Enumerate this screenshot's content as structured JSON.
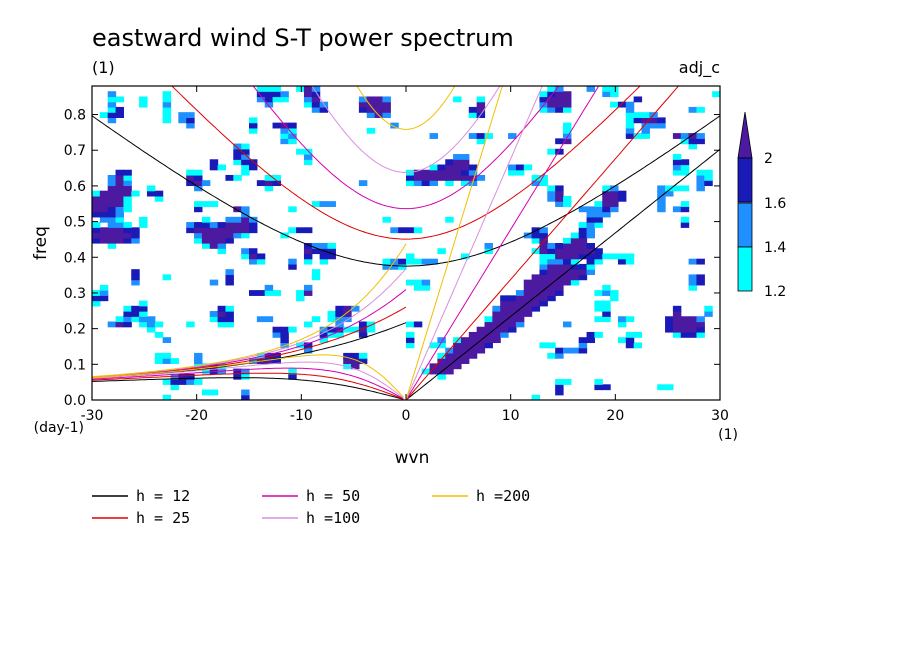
{
  "chart_data": {
    "type": "heatmap",
    "title": "eastward wind S-T power spectrum",
    "subtitle_left": "(1)",
    "subtitle_right": "adj_c",
    "xlabel": "wvn",
    "ylabel": "freq",
    "x_unit_label": "(1)",
    "y_unit_label": "(day-1)",
    "xlim": [
      -30,
      30
    ],
    "ylim": [
      0,
      0.88
    ],
    "x_ticks": [
      -30,
      -20,
      -10,
      0,
      10,
      20,
      30
    ],
    "x_tick_labels": [
      "-30",
      "-20",
      "-10",
      "0",
      "10",
      "20",
      "30"
    ],
    "y_ticks": [
      0,
      0.1,
      0.2,
      0.3,
      0.4,
      0.5,
      0.6,
      0.7,
      0.8
    ],
    "y_tick_labels": [
      "0.0",
      "0.1",
      "0.2",
      "0.3",
      "0.4",
      "0.5",
      "0.6",
      "0.7",
      "0.8"
    ],
    "contour_levels": [
      1.2,
      1.4,
      1.6,
      2
    ],
    "colorbar_labels": [
      "1.2",
      "1.4",
      "1.6",
      "2"
    ],
    "level_colors": [
      "#00ffff",
      "#1e90ff",
      "#1a1ab8",
      "#4b1aa0"
    ],
    "dispersion_curves": [
      {
        "label": "h = 12",
        "h": 12,
        "color": "#000000"
      },
      {
        "label": "h = 25",
        "h": 25,
        "color": "#e00000"
      },
      {
        "label": "h = 50",
        "h": 50,
        "color": "#d400b0"
      },
      {
        "label": "h =100",
        "h": 100,
        "color": "#d890e0"
      },
      {
        "label": "h =200",
        "h": 200,
        "color": "#f0c000"
      }
    ]
  }
}
